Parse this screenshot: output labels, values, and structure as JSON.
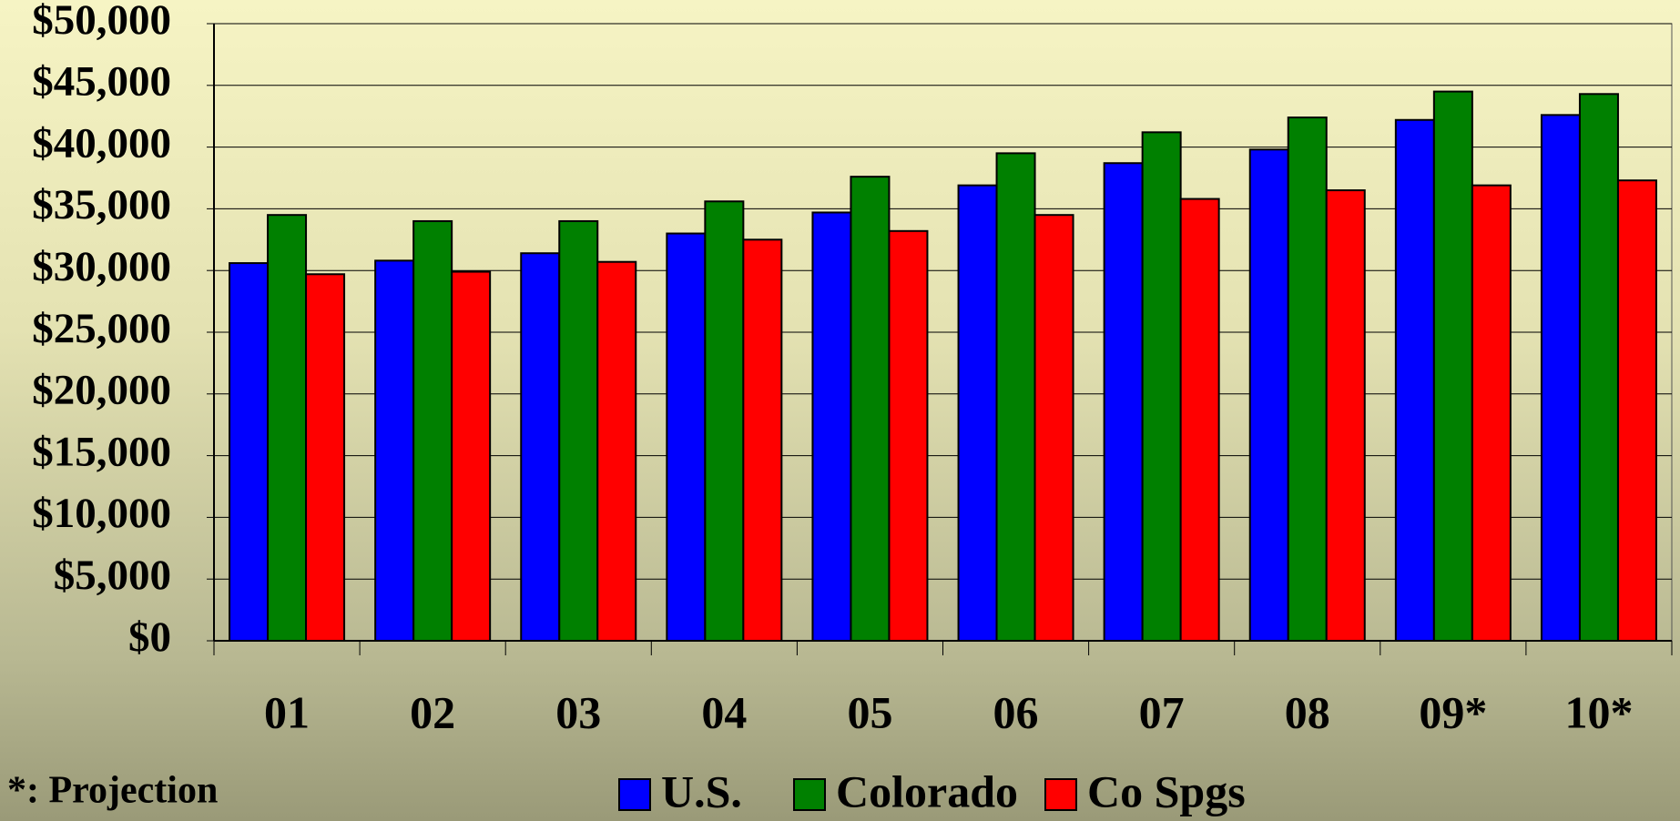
{
  "chart_data": {
    "type": "bar",
    "annotation": "*: Projection",
    "categories": [
      "01",
      "02",
      "03",
      "04",
      "05",
      "06",
      "07",
      "08",
      "09*",
      "10*"
    ],
    "series": [
      {
        "name": "U.S.",
        "color": "#0000ff",
        "values": [
          30600,
          30800,
          31400,
          33000,
          34700,
          36900,
          38700,
          39800,
          42200,
          42600
        ]
      },
      {
        "name": "Colorado",
        "color": "#008000",
        "values": [
          34500,
          34000,
          34000,
          35600,
          37600,
          39500,
          41200,
          42400,
          44500,
          44300
        ]
      },
      {
        "name": "Co Spgs",
        "color": "#ff0000",
        "values": [
          29700,
          29900,
          30700,
          32500,
          33200,
          34500,
          35800,
          36500,
          36900,
          37300
        ]
      }
    ],
    "ylim": [
      0,
      50000
    ],
    "yticks": [
      {
        "value": 0,
        "label": "$0"
      },
      {
        "value": 5000,
        "label": "$5,000"
      },
      {
        "value": 10000,
        "label": "$10,000"
      },
      {
        "value": 15000,
        "label": "$15,000"
      },
      {
        "value": 20000,
        "label": "$20,000"
      },
      {
        "value": 25000,
        "label": "$25,000"
      },
      {
        "value": 30000,
        "label": "$30,000"
      },
      {
        "value": 35000,
        "label": "$35,000"
      },
      {
        "value": 40000,
        "label": "$40,000"
      },
      {
        "value": 45000,
        "label": "$45,000"
      },
      {
        "value": 50000,
        "label": "$50,000"
      }
    ],
    "grid": true,
    "legend": "bottom"
  }
}
